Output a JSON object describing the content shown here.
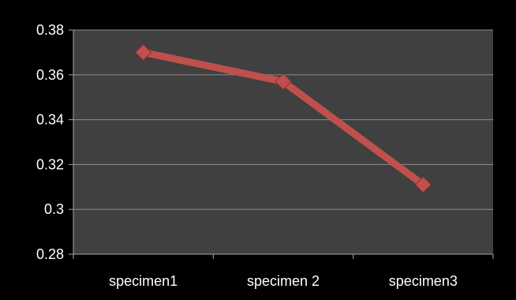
{
  "chart_data": {
    "type": "line",
    "title": "",
    "xlabel": "",
    "ylabel": "",
    "categories": [
      "specimen1",
      "specimen 2",
      "specimen3"
    ],
    "series": [
      {
        "values": [
          0.37,
          0.357,
          0.311
        ]
      }
    ],
    "ylim": [
      0.28,
      0.38
    ],
    "yticks": [
      0.28,
      0.3,
      0.32,
      0.34,
      0.36,
      0.38
    ],
    "ytick_labels": [
      "0.28",
      "0.3",
      "0.32",
      "0.34",
      "0.36",
      "0.38"
    ],
    "grid": true,
    "legend": "none",
    "colors": {
      "background": "#000000",
      "plot_area": "#404040",
      "gridline": "#8c8c8c",
      "axis": "#a6a6a6",
      "line": "#c0504d",
      "marker": "#c0504d",
      "text": "#ffffff"
    },
    "marker": "diamond"
  }
}
